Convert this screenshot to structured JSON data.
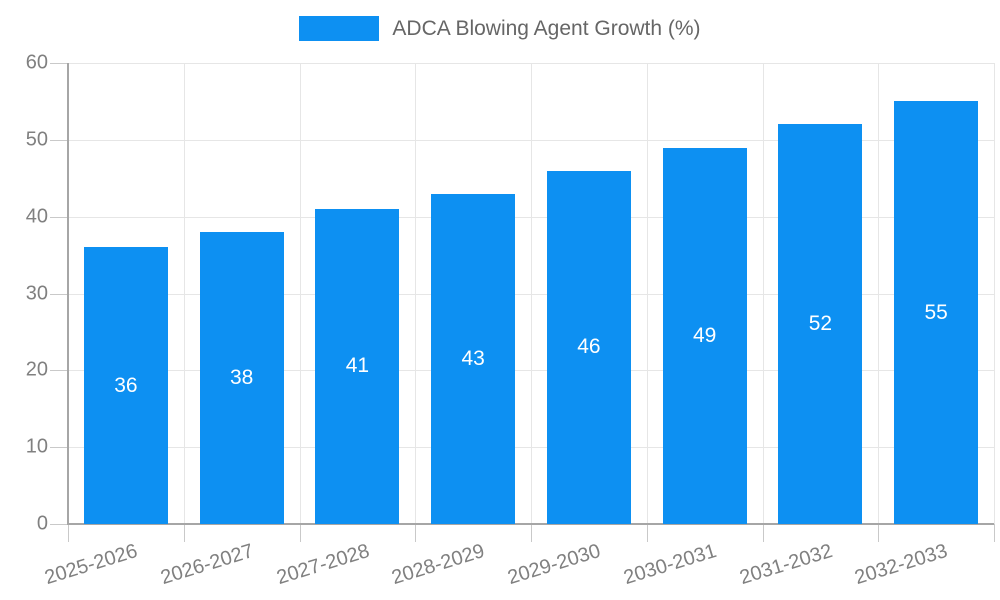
{
  "chart_data": {
    "type": "bar",
    "title": "ADCA Blowing Agent Growth (%)",
    "categories": [
      "2025-2026",
      "2026-2027",
      "2027-2028",
      "2028-2029",
      "2029-2030",
      "2030-2031",
      "2031-2032",
      "2032-2033"
    ],
    "values": [
      36,
      38,
      41,
      43,
      46,
      49,
      52,
      55
    ],
    "xlabel": "",
    "ylabel": "",
    "ylim": [
      0,
      60
    ],
    "yticks": [
      0,
      10,
      20,
      30,
      40,
      50,
      60
    ],
    "grid": "on",
    "legend_position": "top-center",
    "colors": {
      "bar": "#0D90F2",
      "bar_value_label": "#ffffff",
      "axis_line": "#a6a6a6",
      "gridline": "#e6e6e6",
      "tick": "#c9c9c9",
      "tick_label": "#808080",
      "legend_text": "#666666"
    }
  }
}
